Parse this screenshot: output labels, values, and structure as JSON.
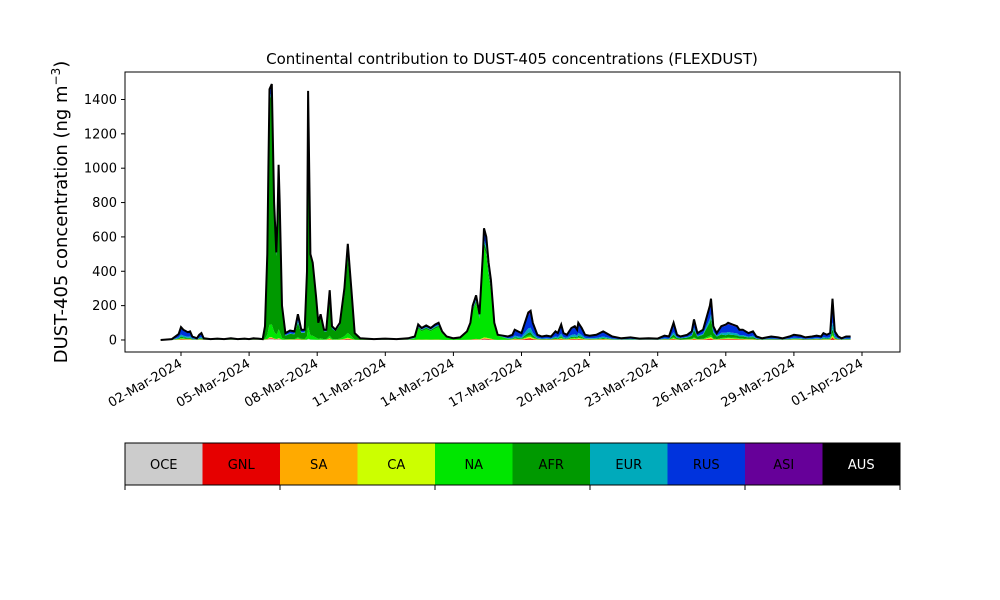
{
  "chart_data": {
    "type": "area",
    "title": "Continental contribution to DUST-405 concentrations (FLEXDUST)",
    "ylabel_main": "DUST-405 concentration (ng m",
    "ylabel_sup": "−3",
    "ylabel_close": ")",
    "xlabel": "",
    "ylim": [
      -70,
      1560
    ],
    "yticks": [
      0,
      200,
      400,
      600,
      800,
      1000,
      1200,
      1400
    ],
    "xticks": [
      "02-Mar-2024",
      "05-Mar-2024",
      "08-Mar-2024",
      "11-Mar-2024",
      "14-Mar-2024",
      "17-Mar-2024",
      "20-Mar-2024",
      "23-Mar-2024",
      "26-Mar-2024",
      "29-Mar-2024",
      "01-Apr-2024"
    ],
    "grid": false,
    "legend_placement": "colorbar below plot",
    "categories": [
      "OCE",
      "GNL",
      "SA",
      "CA",
      "NA",
      "AFR",
      "EUR",
      "RUS",
      "ASI",
      "AUS"
    ],
    "colors": [
      "#cccccc",
      "#e60000",
      "#ffaa00",
      "#ccff00",
      "#00e600",
      "#009900",
      "#00aabb",
      "#0033dd",
      "#660099",
      "#000000"
    ],
    "x_day_start": 1.1,
    "x_day_end": 31.5,
    "total": [
      [
        1.1,
        0
      ],
      [
        1.6,
        5
      ],
      [
        1.9,
        35
      ],
      [
        2.0,
        75
      ],
      [
        2.1,
        60
      ],
      [
        2.3,
        45
      ],
      [
        2.4,
        50
      ],
      [
        2.5,
        20
      ],
      [
        2.7,
        10
      ],
      [
        2.8,
        30
      ],
      [
        2.9,
        40
      ],
      [
        3.0,
        10
      ],
      [
        3.3,
        5
      ],
      [
        3.6,
        8
      ],
      [
        3.9,
        5
      ],
      [
        4.2,
        10
      ],
      [
        4.5,
        5
      ],
      [
        4.8,
        8
      ],
      [
        5.0,
        5
      ],
      [
        5.2,
        10
      ],
      [
        5.4,
        8
      ],
      [
        5.6,
        5
      ],
      [
        5.7,
        80
      ],
      [
        5.8,
        500
      ],
      [
        5.85,
        1000
      ],
      [
        5.9,
        1460
      ],
      [
        6.0,
        1490
      ],
      [
        6.1,
        800
      ],
      [
        6.2,
        510
      ],
      [
        6.25,
        700
      ],
      [
        6.3,
        1020
      ],
      [
        6.35,
        800
      ],
      [
        6.45,
        200
      ],
      [
        6.6,
        40
      ],
      [
        6.8,
        55
      ],
      [
        7.0,
        50
      ],
      [
        7.15,
        150
      ],
      [
        7.3,
        60
      ],
      [
        7.45,
        60
      ],
      [
        7.55,
        400
      ],
      [
        7.6,
        1450
      ],
      [
        7.7,
        500
      ],
      [
        7.8,
        450
      ],
      [
        7.95,
        250
      ],
      [
        8.05,
        100
      ],
      [
        8.15,
        150
      ],
      [
        8.3,
        60
      ],
      [
        8.4,
        60
      ],
      [
        8.55,
        290
      ],
      [
        8.65,
        80
      ],
      [
        8.8,
        60
      ],
      [
        9.0,
        100
      ],
      [
        9.2,
        300
      ],
      [
        9.35,
        560
      ],
      [
        9.5,
        300
      ],
      [
        9.65,
        40
      ],
      [
        9.9,
        10
      ],
      [
        10.5,
        5
      ],
      [
        11.0,
        8
      ],
      [
        11.5,
        5
      ],
      [
        12.0,
        10
      ],
      [
        12.3,
        20
      ],
      [
        12.45,
        90
      ],
      [
        12.6,
        70
      ],
      [
        12.8,
        85
      ],
      [
        13.0,
        70
      ],
      [
        13.2,
        90
      ],
      [
        13.35,
        100
      ],
      [
        13.5,
        50
      ],
      [
        13.7,
        20
      ],
      [
        14.0,
        10
      ],
      [
        14.3,
        15
      ],
      [
        14.6,
        50
      ],
      [
        14.75,
        100
      ],
      [
        14.85,
        200
      ],
      [
        15.0,
        260
      ],
      [
        15.15,
        150
      ],
      [
        15.3,
        500
      ],
      [
        15.35,
        650
      ],
      [
        15.45,
        600
      ],
      [
        15.55,
        450
      ],
      [
        15.65,
        350
      ],
      [
        15.8,
        100
      ],
      [
        15.95,
        30
      ],
      [
        16.2,
        25
      ],
      [
        16.4,
        20
      ],
      [
        16.6,
        30
      ],
      [
        16.7,
        60
      ],
      [
        17.0,
        40
      ],
      [
        17.2,
        120
      ],
      [
        17.3,
        160
      ],
      [
        17.4,
        170
      ],
      [
        17.5,
        100
      ],
      [
        17.7,
        30
      ],
      [
        17.9,
        20
      ],
      [
        18.1,
        25
      ],
      [
        18.3,
        20
      ],
      [
        18.5,
        50
      ],
      [
        18.6,
        40
      ],
      [
        18.75,
        90
      ],
      [
        18.85,
        40
      ],
      [
        19.0,
        30
      ],
      [
        19.2,
        70
      ],
      [
        19.35,
        80
      ],
      [
        19.45,
        60
      ],
      [
        19.5,
        100
      ],
      [
        19.65,
        70
      ],
      [
        19.8,
        30
      ],
      [
        20.0,
        25
      ],
      [
        20.3,
        30
      ],
      [
        20.6,
        50
      ],
      [
        20.8,
        35
      ],
      [
        21.0,
        20
      ],
      [
        21.4,
        10
      ],
      [
        21.8,
        15
      ],
      [
        22.2,
        8
      ],
      [
        22.6,
        10
      ],
      [
        23.0,
        8
      ],
      [
        23.3,
        25
      ],
      [
        23.5,
        20
      ],
      [
        23.7,
        100
      ],
      [
        23.85,
        30
      ],
      [
        24.0,
        20
      ],
      [
        24.3,
        30
      ],
      [
        24.5,
        50
      ],
      [
        24.6,
        120
      ],
      [
        24.75,
        40
      ],
      [
        25.0,
        60
      ],
      [
        25.3,
        200
      ],
      [
        25.35,
        240
      ],
      [
        25.45,
        80
      ],
      [
        25.6,
        40
      ],
      [
        25.8,
        80
      ],
      [
        26.0,
        90
      ],
      [
        26.1,
        100
      ],
      [
        26.3,
        90
      ],
      [
        26.5,
        80
      ],
      [
        26.6,
        60
      ],
      [
        26.75,
        60
      ],
      [
        27.0,
        40
      ],
      [
        27.2,
        50
      ],
      [
        27.35,
        20
      ],
      [
        27.6,
        10
      ],
      [
        27.8,
        15
      ],
      [
        28.0,
        20
      ],
      [
        28.3,
        15
      ],
      [
        28.5,
        10
      ],
      [
        28.8,
        20
      ],
      [
        29.0,
        30
      ],
      [
        29.3,
        25
      ],
      [
        29.5,
        15
      ],
      [
        29.8,
        20
      ],
      [
        30.0,
        25
      ],
      [
        30.2,
        20
      ],
      [
        30.3,
        40
      ],
      [
        30.45,
        30
      ],
      [
        30.6,
        40
      ],
      [
        30.7,
        240
      ],
      [
        30.8,
        50
      ],
      [
        30.95,
        20
      ],
      [
        31.1,
        10
      ],
      [
        31.3,
        20
      ],
      [
        31.5,
        20
      ]
    ],
    "afr_share": [
      [
        1.0,
        0.1
      ],
      [
        5.6,
        0.1
      ],
      [
        5.75,
        0.9
      ],
      [
        6.5,
        0.9
      ],
      [
        6.6,
        0.5
      ],
      [
        7.5,
        0.6
      ],
      [
        7.55,
        0.95
      ],
      [
        8.0,
        0.95
      ],
      [
        8.4,
        0.7
      ],
      [
        9.1,
        0.8
      ],
      [
        9.8,
        0.8
      ],
      [
        10.0,
        0.1
      ],
      [
        12.2,
        0.1
      ],
      [
        12.4,
        0.1
      ],
      [
        13.5,
        0.1
      ],
      [
        14.5,
        0.05
      ],
      [
        16.0,
        0.05
      ],
      [
        16.5,
        0.1
      ],
      [
        23.5,
        0.05
      ],
      [
        24.0,
        0.3
      ],
      [
        25.5,
        0.4
      ],
      [
        26.0,
        0.15
      ],
      [
        27.0,
        0.2
      ],
      [
        28.0,
        0.1
      ],
      [
        32.0,
        0.1
      ]
    ],
    "na_share": [
      [
        1.0,
        0.05
      ],
      [
        5.6,
        0.05
      ],
      [
        12.2,
        0.05
      ],
      [
        12.4,
        0.7
      ],
      [
        13.5,
        0.7
      ],
      [
        14.5,
        0.8
      ],
      [
        16.0,
        0.8
      ],
      [
        16.5,
        0.05
      ],
      [
        32.0,
        0.05
      ]
    ]
  }
}
